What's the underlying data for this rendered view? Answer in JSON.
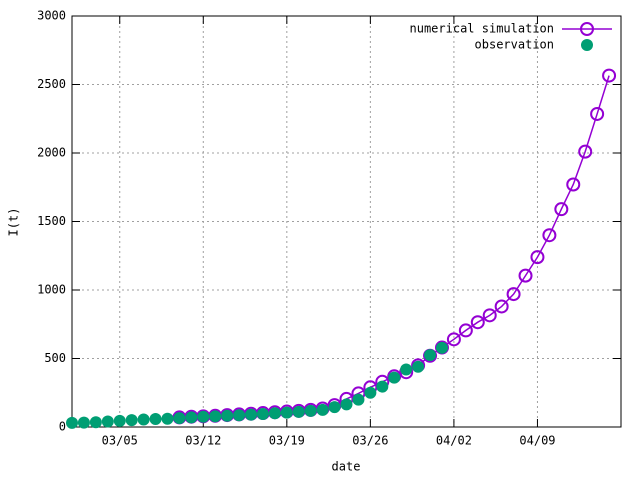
{
  "chart_data": {
    "type": "line",
    "xlabel": "date",
    "ylabel": "I(t)",
    "xlim": [
      "03/01",
      "04/16"
    ],
    "xticks": [
      "03/05",
      "03/12",
      "03/19",
      "03/26",
      "04/02",
      "04/09"
    ],
    "ylim": [
      0,
      3000
    ],
    "yticks": [
      0,
      500,
      1000,
      1500,
      2000,
      2500,
      3000
    ],
    "grid": true,
    "legend": "top-right",
    "series": [
      {
        "name": "numerical simulation",
        "color": "#9400d3",
        "style": "linespoints",
        "x": [
          "03/10",
          "03/11",
          "03/12",
          "03/13",
          "03/14",
          "03/15",
          "03/16",
          "03/17",
          "03/18",
          "03/19",
          "03/20",
          "03/21",
          "03/22",
          "03/23",
          "03/24",
          "03/25",
          "03/26",
          "03/27",
          "03/28",
          "03/29",
          "03/30",
          "03/31",
          "04/01",
          "04/02",
          "04/03",
          "04/04",
          "04/05",
          "04/06",
          "04/07",
          "04/08",
          "04/09",
          "04/10",
          "04/11",
          "04/12",
          "04/13",
          "04/14",
          "04/15"
        ],
        "values": [
          70,
          75,
          78,
          82,
          87,
          92,
          97,
          102,
          108,
          113,
          118,
          125,
          135,
          160,
          205,
          245,
          290,
          330,
          370,
          400,
          450,
          520,
          580,
          640,
          705,
          765,
          815,
          880,
          970,
          1105,
          1240,
          1400,
          1590,
          1770,
          2010,
          2285,
          2565
        ]
      },
      {
        "name": "observation",
        "color": "#009e73",
        "style": "points",
        "x": [
          "03/01",
          "03/02",
          "03/03",
          "03/04",
          "03/05",
          "03/06",
          "03/07",
          "03/08",
          "03/09",
          "03/10",
          "03/11",
          "03/12",
          "03/13",
          "03/14",
          "03/15",
          "03/16",
          "03/17",
          "03/18",
          "03/19",
          "03/20",
          "03/21",
          "03/22",
          "03/23",
          "03/24",
          "03/25",
          "03/26",
          "03/27",
          "03/28",
          "03/29",
          "03/30",
          "03/31",
          "04/01"
        ],
        "values": [
          30,
          32,
          35,
          40,
          45,
          50,
          55,
          58,
          60,
          65,
          70,
          75,
          78,
          82,
          86,
          90,
          95,
          100,
          105,
          110,
          118,
          125,
          145,
          165,
          200,
          250,
          295,
          360,
          420,
          440,
          525,
          578
        ]
      }
    ]
  }
}
